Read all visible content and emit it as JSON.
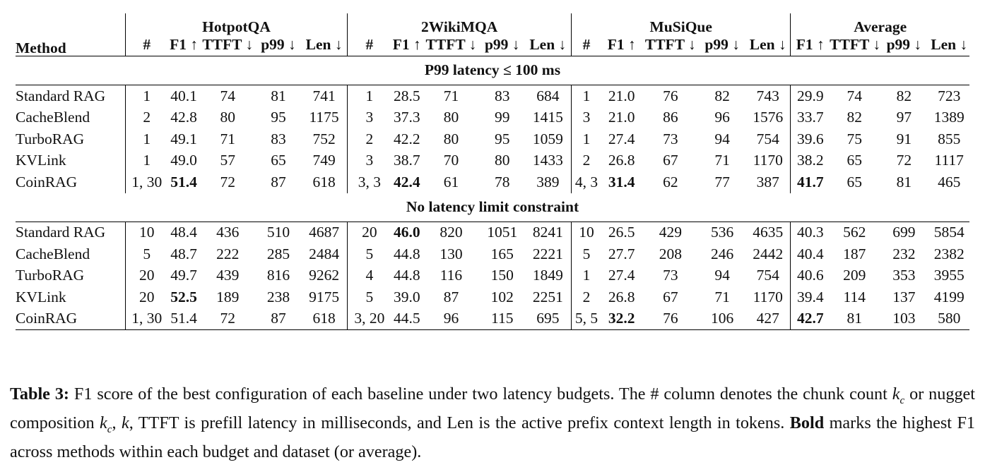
{
  "table": {
    "method_header": "Method",
    "groups": [
      "HotpotQA",
      "2WikiMQA",
      "MuSiQue",
      "Average"
    ],
    "subheaders": {
      "count": "#",
      "f1": "F1 ↑",
      "ttft": "TTFT ↓",
      "p99": "p99 ↓",
      "len": "Len ↓"
    },
    "sections": [
      {
        "title": "P99 latency ≤ 100 ms",
        "rows": [
          {
            "method": "Standard RAG",
            "cells": [
              "1",
              "40.1",
              "74",
              "81",
              "741",
              "1",
              "28.5",
              "71",
              "83",
              "684",
              "1",
              "21.0",
              "76",
              "82",
              "743",
              "29.9",
              "74",
              "82",
              "723"
            ],
            "bold": []
          },
          {
            "method": "CacheBlend",
            "cells": [
              "2",
              "42.8",
              "80",
              "95",
              "1175",
              "3",
              "37.3",
              "80",
              "99",
              "1415",
              "3",
              "21.0",
              "86",
              "96",
              "1576",
              "33.7",
              "82",
              "97",
              "1389"
            ],
            "bold": []
          },
          {
            "method": "TurboRAG",
            "cells": [
              "1",
              "49.1",
              "71",
              "83",
              "752",
              "2",
              "42.2",
              "80",
              "95",
              "1059",
              "1",
              "27.4",
              "73",
              "94",
              "754",
              "39.6",
              "75",
              "91",
              "855"
            ],
            "bold": []
          },
          {
            "method": "KVLink",
            "cells": [
              "1",
              "49.0",
              "57",
              "65",
              "749",
              "3",
              "38.7",
              "70",
              "80",
              "1433",
              "2",
              "26.8",
              "67",
              "71",
              "1170",
              "38.2",
              "65",
              "72",
              "1117"
            ],
            "bold": []
          },
          {
            "method": "CoinRAG",
            "cells": [
              "1, 30",
              "51.4",
              "72",
              "87",
              "618",
              "3, 3",
              "42.4",
              "61",
              "78",
              "389",
              "4, 3",
              "31.4",
              "62",
              "77",
              "387",
              "41.7",
              "65",
              "81",
              "465"
            ],
            "bold": [
              1,
              6,
              11,
              15
            ]
          }
        ]
      },
      {
        "title": "No latency limit constraint",
        "rows": [
          {
            "method": "Standard RAG",
            "cells": [
              "10",
              "48.4",
              "436",
              "510",
              "4687",
              "20",
              "46.0",
              "820",
              "1051",
              "8241",
              "10",
              "26.5",
              "429",
              "536",
              "4635",
              "40.3",
              "562",
              "699",
              "5854"
            ],
            "bold": [
              6
            ]
          },
          {
            "method": "CacheBlend",
            "cells": [
              "5",
              "48.7",
              "222",
              "285",
              "2484",
              "5",
              "44.8",
              "130",
              "165",
              "2221",
              "5",
              "27.7",
              "208",
              "246",
              "2442",
              "40.4",
              "187",
              "232",
              "2382"
            ],
            "bold": []
          },
          {
            "method": "TurboRAG",
            "cells": [
              "20",
              "49.7",
              "439",
              "816",
              "9262",
              "4",
              "44.8",
              "116",
              "150",
              "1849",
              "1",
              "27.4",
              "73",
              "94",
              "754",
              "40.6",
              "209",
              "353",
              "3955"
            ],
            "bold": []
          },
          {
            "method": "KVLink",
            "cells": [
              "20",
              "52.5",
              "189",
              "238",
              "9175",
              "5",
              "39.0",
              "87",
              "102",
              "2251",
              "2",
              "26.8",
              "67",
              "71",
              "1170",
              "39.4",
              "114",
              "137",
              "4199"
            ],
            "bold": [
              1
            ]
          },
          {
            "method": "CoinRAG",
            "cells": [
              "1, 30",
              "51.4",
              "72",
              "87",
              "618",
              "3, 20",
              "44.5",
              "96",
              "115",
              "695",
              "5, 5",
              "32.2",
              "76",
              "106",
              "427",
              "42.7",
              "81",
              "103",
              "580"
            ],
            "bold": [
              11,
              15
            ]
          }
        ]
      }
    ]
  },
  "caption": {
    "label": "Table 3:",
    "part1": " F1 score of the best configuration of each baseline under two latency budgets. The # column denotes the chunk count ",
    "kc": "k",
    "kc_sub": "c",
    "part2": " or nugget composition ",
    "kc2": "k",
    "kc2_sub": "c",
    "comma": ", ",
    "k": "k",
    "part3": ", TTFT is prefill latency in milliseconds, and Len is the active prefix context length in tokens. ",
    "bold_word": "Bold",
    "part4": " marks the highest F1 across methods within each budget and dataset (or average)."
  }
}
